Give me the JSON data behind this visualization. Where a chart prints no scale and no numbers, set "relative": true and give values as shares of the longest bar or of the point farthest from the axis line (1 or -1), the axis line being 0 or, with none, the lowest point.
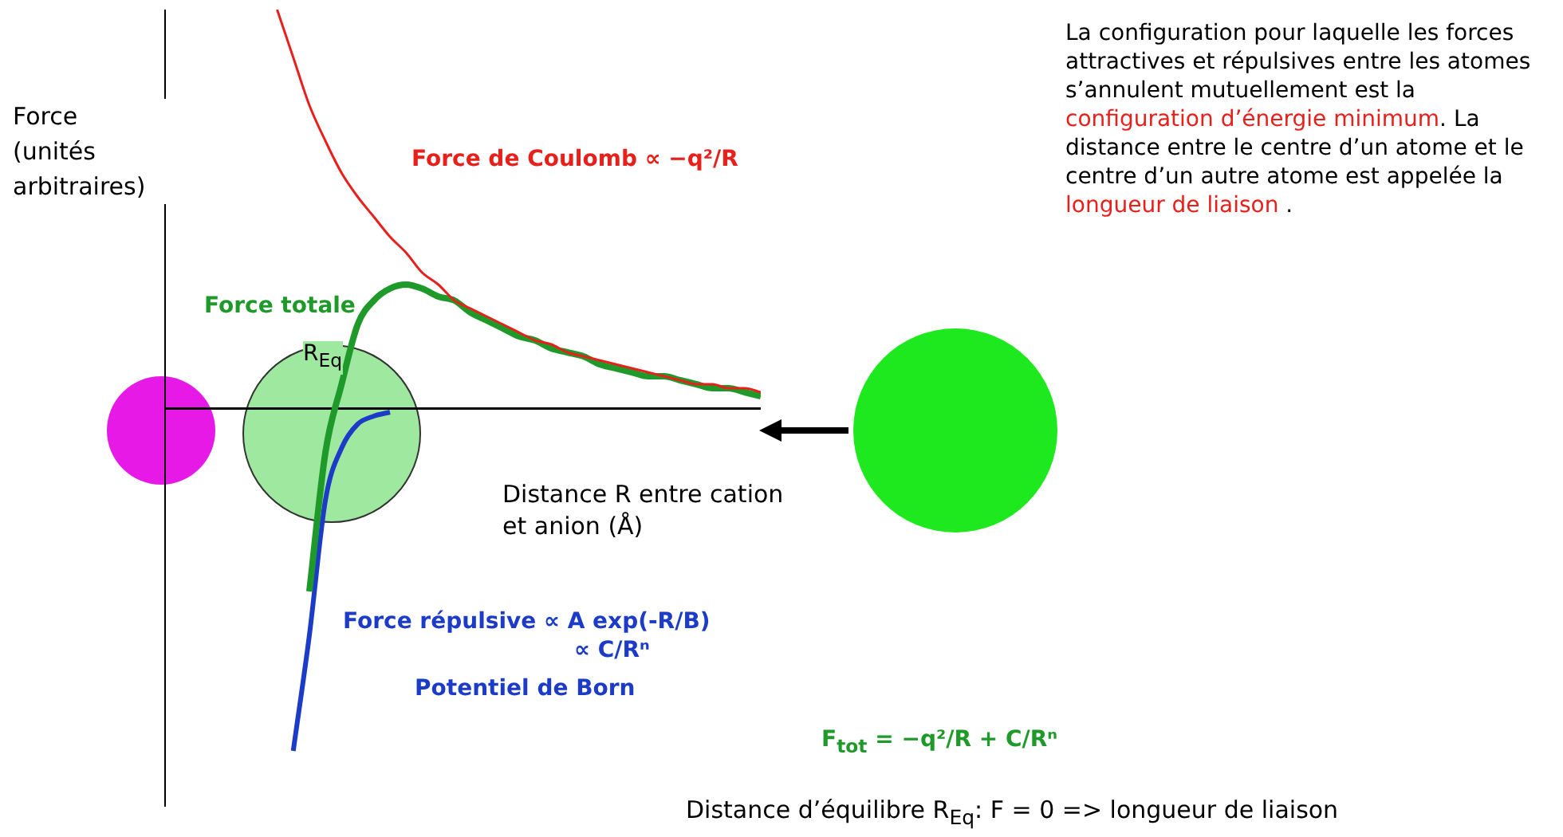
{
  "chart_data": {
    "type": "line",
    "relative": true,
    "legend": false,
    "grid": false,
    "tick_labels": false,
    "marker": "none",
    "ylabel": "Force (unités arbitraires)",
    "xlabel": "Distance  R entre cation et anion (Å)",
    "categories": [
      null,
      null,
      null,
      null,
      null,
      null,
      null,
      null,
      null,
      null,
      null,
      null,
      null,
      null,
      null,
      null,
      null,
      null,
      null,
      null,
      null,
      null,
      null,
      null,
      null,
      null,
      null,
      null,
      null,
      null,
      null,
      null,
      null,
      null,
      null,
      null,
      null,
      null
    ],
    "series": [
      {
        "name": "Force de Coulomb ∝ −q²/R",
        "color": "#e8201c",
        "values": [
          null,
          null,
          null,
          null,
          null,
          null,
          null,
          1,
          0.88,
          0.76,
          0.67,
          0.59,
          0.53,
          0.48,
          0.43,
          0.39,
          0.34,
          0.31,
          0.27,
          0.25,
          0.23,
          0.21,
          0.19,
          0.17,
          0.16,
          0.14,
          0.13,
          0.12,
          0.11,
          0.1,
          0.09,
          0.08,
          0.07,
          0.06,
          0.06,
          0.05,
          0.05,
          0.04
        ]
      },
      {
        "name": "Force totale",
        "color": "#1f9a2a",
        "values": [
          null,
          null,
          null,
          null,
          null,
          null,
          null,
          null,
          null,
          -0.46,
          -0.11,
          0.06,
          0.21,
          0.27,
          0.3,
          0.31,
          0.3,
          0.28,
          0.27,
          0.24,
          0.22,
          0.2,
          0.18,
          0.17,
          0.15,
          0.14,
          0.13,
          0.11,
          0.1,
          0.09,
          0.08,
          0.08,
          0.07,
          0.06,
          0.05,
          0.05,
          0.04,
          0.03
        ]
      },
      {
        "name": "Force répulsive  ∝ A exp(-R/B)",
        "color": "#1c3cc8",
        "values": [
          null,
          null,
          null,
          null,
          null,
          null,
          null,
          null,
          -0.86,
          -0.57,
          -0.23,
          -0.1,
          -0.04,
          -0.02,
          -0.01,
          null,
          null,
          null,
          null,
          null,
          null,
          null,
          null,
          null,
          null,
          null,
          null,
          null,
          null,
          null,
          null,
          null,
          null,
          null,
          null,
          null,
          null,
          null
        ]
      }
    ],
    "annotations": [
      "La configuration pour laquelle les forces attractives et répulsives entre les atomes s’annulent mutuellement est la",
      "configuration d’énergie minimum",
      ". La distance entre le centre d’un atome et le centre d’un autre atome est appelée la",
      "longueur de liaison",
      ".",
      "∝ C/Rⁿ",
      "Potentiel de Born",
      "R$_{Eq}$",
      "F$_{tot}$ =  −q²/R + C/Rⁿ",
      "Distance d’équilibre R$_{Eq}$: F = 0   =>  longueur de liaison"
    ]
  }
}
